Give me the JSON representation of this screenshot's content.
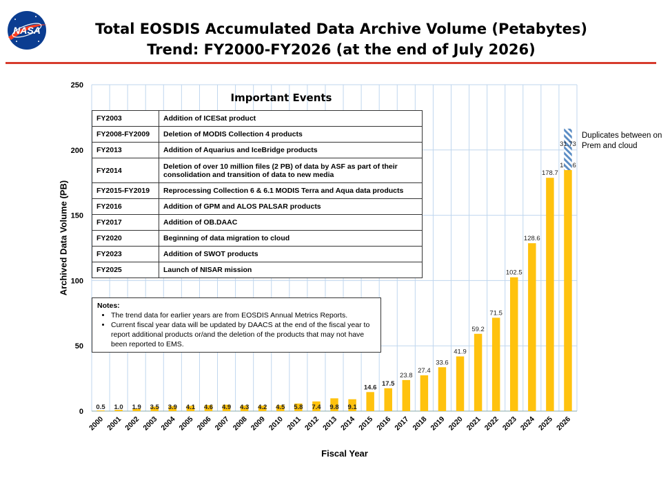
{
  "header": {
    "logo_text": "NASA",
    "title_line1": "Total EOSDIS Accumulated Data Archive Volume (Petabytes)",
    "title_line2": "Trend: FY2000-FY2026 (at the end of July 2026)"
  },
  "colors": {
    "bar": "#FFC20E",
    "accent_line": "#D63A2C",
    "duplicate_hatch": "#5B8DC4",
    "grid": "#BFD6EE"
  },
  "events": {
    "title": "Important Events",
    "rows": [
      {
        "year": "FY2003",
        "event": "Addition of ICESat product"
      },
      {
        "year": "FY2008-FY2009",
        "event": "Deletion of  MODIS Collection 4 products"
      },
      {
        "year": "FY2013",
        "event": "Addition of Aquarius and IceBridge products"
      },
      {
        "year": "FY2014",
        "event": "Deletion of over 10 million files (2 PB) of data by ASF as part of their consolidation and transition of data to new media"
      },
      {
        "year": "FY2015-FY2019",
        "event": "Reprocessing  Collection 6 & 6.1 MODIS Terra and Aqua data products"
      },
      {
        "year": "FY2016",
        "event": "Addition of GPM and ALOS PALSAR products"
      },
      {
        "year": "FY2017",
        "event": "Addition of OB.DAAC"
      },
      {
        "year": "FY2020",
        "event": "Beginning of data migration to cloud"
      },
      {
        "year": "FY2023",
        "event": "Addition of SWOT products"
      },
      {
        "year": "FY2025",
        "event": "Launch of NISAR mission"
      }
    ]
  },
  "notes": {
    "title": "Notes:",
    "items": [
      "The trend data for earlier years are from EOSDIS Annual Metrics Reports.",
      "Current fiscal year data will be updated by DAACS at the end of the fiscal year to report additional products or/and the deletion of the products that may not have been reported to EMS."
    ]
  },
  "duplicates_note": "Duplicates between on Prem and cloud",
  "chart_data": {
    "type": "bar",
    "title": "Total EOSDIS Accumulated Data Archive Volume (Petabytes)",
    "subtitle": "Trend: FY2000-FY2026 (at the end of July 2026)",
    "xlabel": "Fiscal Year",
    "ylabel": "Archived Data Volume (PB)",
    "ylim": [
      0,
      250
    ],
    "yticks": [
      0,
      50,
      100,
      150,
      200,
      250
    ],
    "grid": true,
    "categories": [
      "2000",
      "2001",
      "2002",
      "2003",
      "2004",
      "2005",
      "2006",
      "2007",
      "2008",
      "2009",
      "2010",
      "2011",
      "2012",
      "2013",
      "2014",
      "2015",
      "2016",
      "2017",
      "2018",
      "2019",
      "2020",
      "2021",
      "2022",
      "2023",
      "2024",
      "2025",
      "2026"
    ],
    "values": [
      0.5,
      1.0,
      1.9,
      3.5,
      3.9,
      4.1,
      4.6,
      4.9,
      4.3,
      4.2,
      4.5,
      5.8,
      7.4,
      9.8,
      9.1,
      14.6,
      17.5,
      23.8,
      27.4,
      33.6,
      41.9,
      59.2,
      71.5,
      102.5,
      128.6,
      178.7,
      184.6
    ],
    "labels": [
      "0.5",
      "1.0",
      "1.9",
      "3.5",
      "3.9",
      "4.1",
      "4.6",
      "4.9",
      "4.3",
      "4.2",
      "4.5",
      "5.8",
      "7.4",
      "9.8",
      "9.1",
      "14.6",
      "17.5",
      "23.8",
      "27.4",
      "33.6",
      "41.9",
      "59.2",
      "71.5",
      "102.5",
      "128.6",
      "178.7",
      "184.6"
    ],
    "duplicates": {
      "category": "2026",
      "value": 31.73,
      "label": "31.73"
    }
  }
}
